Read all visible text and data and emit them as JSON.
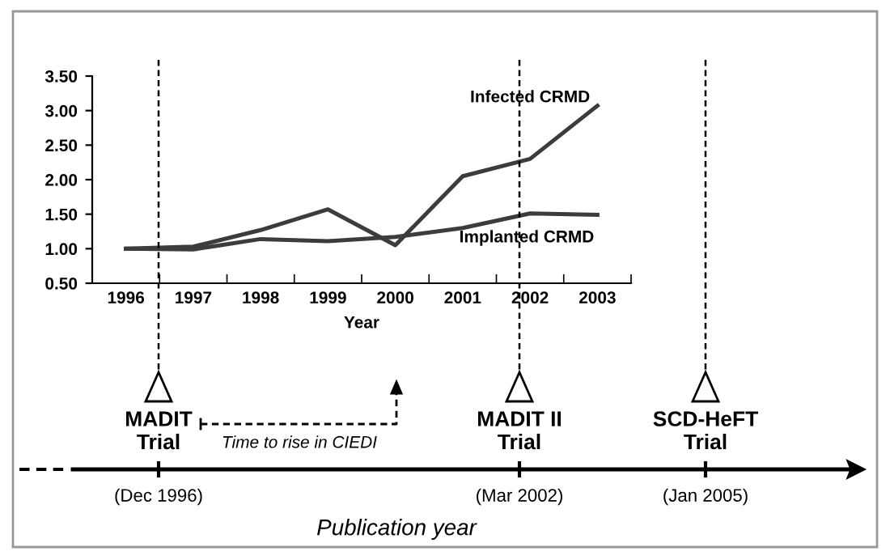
{
  "chart_data": [
    {
      "type": "line",
      "xlabel": "Year",
      "categories": [
        "1996",
        "1997",
        "1998",
        "1999",
        "2000",
        "2001",
        "2002",
        "2003"
      ],
      "series": [
        {
          "name": "Infected CRMD",
          "color": "#3c3c3c",
          "values": [
            1.0,
            1.03,
            1.27,
            1.57,
            1.05,
            2.05,
            2.3,
            3.07
          ]
        },
        {
          "name": "Implanted CRMD",
          "color": "#3c3c3c",
          "values": [
            1.0,
            0.99,
            1.14,
            1.11,
            1.17,
            1.3,
            1.51,
            1.49
          ]
        }
      ],
      "ylim": [
        0.5,
        3.5
      ],
      "yticks": [
        {
          "value": 0.5,
          "label": "0.50"
        },
        {
          "value": 1.0,
          "label": "1.00"
        },
        {
          "value": 1.5,
          "label": "1.50"
        },
        {
          "value": 2.0,
          "label": "2.00"
        },
        {
          "value": 2.5,
          "label": "2.50"
        },
        {
          "value": 3.0,
          "label": "3.00"
        },
        {
          "value": 3.5,
          "label": "3.50"
        }
      ],
      "grid": false,
      "legend": false,
      "marker": "none",
      "line_style": "solid"
    },
    {
      "type": "other",
      "xlabel": "Publication year",
      "annotations": [
        "MADIT\nTrial",
        "(Dec 1996)",
        "MADIT II\nTrial",
        "(Mar 2002)",
        "SCD-HeFT\nTrial",
        "(Jan 2005)",
        "Time to rise in CIEDI"
      ]
    }
  ]
}
